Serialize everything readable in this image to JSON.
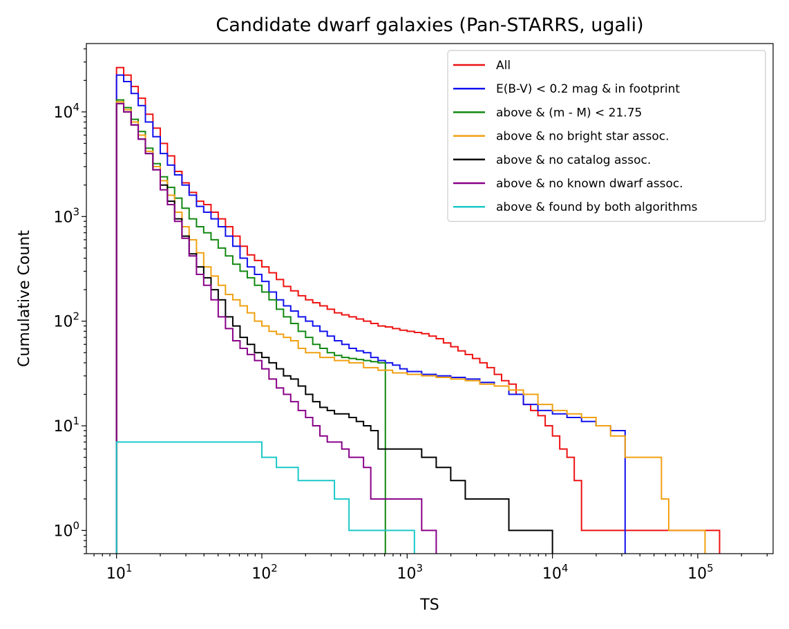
{
  "chart_data": {
    "type": "line",
    "title": "Candidate dwarf galaxies (Pan-STARRS, ugali)",
    "xlabel": "TS",
    "ylabel": "Cumulative Count",
    "xscale": "log",
    "yscale": "log",
    "xlim": [
      6.2,
      330000
    ],
    "ylim": [
      0.6,
      45000
    ],
    "grid": false,
    "legend_position": "top-right",
    "x_ticks": [
      {
        "value": 10,
        "base": "10",
        "exp": "1"
      },
      {
        "value": 100,
        "base": "10",
        "exp": "2"
      },
      {
        "value": 1000,
        "base": "10",
        "exp": "3"
      },
      {
        "value": 10000,
        "base": "10",
        "exp": "4"
      },
      {
        "value": 100000,
        "base": "10",
        "exp": "5"
      }
    ],
    "y_ticks": [
      {
        "value": 1,
        "base": "10",
        "exp": "0"
      },
      {
        "value": 10,
        "base": "10",
        "exp": "1"
      },
      {
        "value": 100,
        "base": "10",
        "exp": "2"
      },
      {
        "value": 1000,
        "base": "10",
        "exp": "3"
      },
      {
        "value": 10000,
        "base": "10",
        "exp": "4"
      }
    ],
    "series": [
      {
        "name": "All",
        "color": "#ee1111",
        "bin_edges": [
          10,
          11.2,
          12.6,
          14.1,
          15.8,
          17.8,
          20.0,
          22.4,
          25.1,
          28.2,
          31.6,
          35.5,
          39.8,
          44.7,
          50.1,
          56.2,
          63.1,
          70.8,
          79.4,
          89.1,
          100,
          112,
          126,
          141,
          158,
          178,
          200,
          224,
          251,
          282,
          316,
          355,
          398,
          447,
          501,
          562,
          631,
          708,
          794,
          891,
          1000,
          1122,
          1259,
          1413,
          1585,
          1778,
          1995,
          2239,
          2512,
          2818,
          3162,
          3548,
          3981,
          4467,
          5012,
          5623,
          6310,
          7079,
          7943,
          8913,
          10000,
          11220,
          12589,
          14125,
          15849,
          17783,
          19953,
          22387,
          25119,
          28184,
          31623,
          35481,
          39811,
          44668,
          50119,
          56234,
          63096,
          70795,
          79433,
          89125,
          100000,
          112202,
          125893,
          141254
        ],
        "counts": [
          26500,
          22500,
          17500,
          13500,
          9500,
          7000,
          5000,
          3800,
          2700,
          2100,
          1700,
          1400,
          1300,
          1100,
          950,
          800,
          650,
          520,
          430,
          380,
          330,
          290,
          250,
          215,
          195,
          175,
          160,
          150,
          140,
          130,
          120,
          115,
          110,
          105,
          100,
          95,
          90,
          88,
          85,
          82,
          80,
          78,
          76,
          72,
          68,
          62,
          57,
          52,
          48,
          44,
          40,
          36,
          31,
          27,
          25,
          20,
          16,
          14,
          12.5,
          10,
          8,
          6,
          5,
          3,
          1,
          1,
          1,
          1,
          1,
          1,
          1,
          1,
          1,
          1,
          1,
          1,
          1,
          1,
          1,
          1,
          1,
          1,
          1
        ]
      },
      {
        "name": "E(B-V) < 0.2 mag & in footprint",
        "color": "#1111ee",
        "bin_edges": [
          10,
          11.2,
          12.6,
          14.1,
          15.8,
          17.8,
          20.0,
          22.4,
          25.1,
          28.2,
          31.6,
          35.5,
          39.8,
          44.7,
          50.1,
          56.2,
          63.1,
          70.8,
          79.4,
          89.1,
          100,
          112,
          126,
          141,
          158,
          178,
          200,
          224,
          251,
          282,
          316,
          355,
          398,
          447,
          501,
          562,
          631,
          708,
          794,
          891,
          1000,
          1259,
          1585,
          1995,
          2512,
          3162,
          3981,
          5012,
          6310,
          7943,
          10000,
          12589,
          15849,
          19953,
          25119,
          31623
        ],
        "counts": [
          22500,
          19500,
          15000,
          11500,
          8000,
          5800,
          4000,
          3100,
          2500,
          2000,
          1600,
          1250,
          1100,
          950,
          800,
          650,
          520,
          400,
          330,
          280,
          240,
          190,
          160,
          140,
          125,
          110,
          100,
          90,
          80,
          72,
          65,
          60,
          55,
          52,
          50,
          45,
          42,
          40,
          38,
          35,
          33,
          31,
          30,
          29,
          28,
          26,
          24,
          20,
          16,
          14,
          13,
          12,
          11,
          10,
          9
        ]
      },
      {
        "name": "above & (m - M) < 21.75",
        "color": "#118811",
        "bin_edges": [
          10,
          11.2,
          12.6,
          14.1,
          15.8,
          17.8,
          20.0,
          22.4,
          25.1,
          28.2,
          31.6,
          35.5,
          39.8,
          44.7,
          50.1,
          56.2,
          63.1,
          70.8,
          79.4,
          89.1,
          100,
          112,
          126,
          141,
          158,
          178,
          200,
          224,
          251,
          282,
          316,
          355,
          398,
          447,
          501,
          562,
          631,
          708
        ],
        "counts": [
          13000,
          11000,
          8500,
          6500,
          4500,
          3200,
          2400,
          1900,
          1500,
          1200,
          950,
          800,
          700,
          600,
          500,
          420,
          350,
          300,
          260,
          220,
          190,
          160,
          130,
          110,
          95,
          80,
          70,
          60,
          55,
          50,
          47,
          45,
          44,
          43,
          42,
          41,
          40
        ]
      },
      {
        "name": "above & no bright star assoc.",
        "color": "#f0a010",
        "bin_edges": [
          10,
          11.2,
          12.6,
          14.1,
          15.8,
          17.8,
          20.0,
          22.4,
          25.1,
          28.2,
          31.6,
          35.5,
          39.8,
          44.7,
          50.1,
          56.2,
          63.1,
          70.8,
          79.4,
          89.1,
          100,
          112,
          126,
          141,
          158,
          178,
          200,
          251,
          316,
          398,
          501,
          631,
          794,
          1000,
          1259,
          1585,
          1995,
          2512,
          3162,
          3981,
          5012,
          6310,
          7943,
          10000,
          12589,
          15849,
          19953,
          25119,
          31623,
          39811,
          50119,
          56234,
          63096,
          70795,
          79433,
          89125,
          100000,
          112202
        ],
        "counts": [
          12500,
          10500,
          8000,
          6000,
          4200,
          3000,
          2200,
          1600,
          1100,
          800,
          600,
          450,
          330,
          270,
          220,
          180,
          160,
          140,
          120,
          100,
          90,
          80,
          75,
          70,
          65,
          55,
          50,
          45,
          42,
          40,
          36,
          34,
          32,
          31,
          30,
          29,
          28,
          27,
          25,
          24,
          22,
          20,
          16,
          14,
          13,
          12,
          10,
          8,
          5,
          5,
          5,
          2,
          1,
          1,
          1,
          1,
          1
        ]
      },
      {
        "name": "above & no catalog assoc.",
        "color": "#000000",
        "bin_edges": [
          10,
          11.2,
          12.6,
          14.1,
          15.8,
          17.8,
          20.0,
          22.4,
          25.1,
          28.2,
          31.6,
          35.5,
          39.8,
          44.7,
          50.1,
          56.2,
          63.1,
          70.8,
          79.4,
          89.1,
          100,
          112,
          126,
          141,
          158,
          178,
          200,
          224,
          251,
          282,
          316,
          355,
          398,
          447,
          501,
          562,
          631,
          794,
          1000,
          1259,
          1585,
          1995,
          2512,
          3162,
          3981,
          5012,
          5623,
          7079,
          10000
        ],
        "counts": [
          12000,
          10000,
          7500,
          5500,
          4000,
          2800,
          2000,
          1400,
          950,
          650,
          440,
          330,
          260,
          200,
          160,
          110,
          90,
          70,
          60,
          50,
          45,
          40,
          35,
          30,
          28,
          24,
          20,
          17,
          15,
          14,
          13,
          13,
          12,
          11,
          10,
          9,
          6,
          6,
          6,
          5,
          4,
          3,
          2,
          2,
          2,
          1,
          1,
          1
        ]
      },
      {
        "name": "above & no known dwarf assoc.",
        "color": "#880088",
        "bin_edges": [
          10,
          11.2,
          12.6,
          14.1,
          15.8,
          17.8,
          20.0,
          22.4,
          25.1,
          28.2,
          31.6,
          35.5,
          39.8,
          44.7,
          50.1,
          56.2,
          63.1,
          70.8,
          79.4,
          89.1,
          100,
          112,
          126,
          141,
          158,
          178,
          200,
          224,
          251,
          282,
          316,
          355,
          398,
          447,
          501,
          562,
          631,
          794,
          1000,
          1259,
          1585
        ],
        "counts": [
          12000,
          10000,
          7500,
          5500,
          4000,
          2800,
          1800,
          1300,
          900,
          620,
          420,
          280,
          220,
          160,
          110,
          85,
          65,
          55,
          48,
          42,
          35,
          28,
          23,
          20,
          17,
          14,
          12,
          10,
          8,
          7,
          7,
          6,
          5,
          5,
          4,
          2,
          2,
          2,
          2,
          1
        ]
      },
      {
        "name": "above & found by both algorithms",
        "color": "#1bc8c8",
        "bin_edges": [
          10,
          100,
          126,
          178,
          316,
          398,
          1122
        ],
        "counts": [
          7,
          5,
          4,
          3,
          2,
          1
        ]
      }
    ]
  }
}
